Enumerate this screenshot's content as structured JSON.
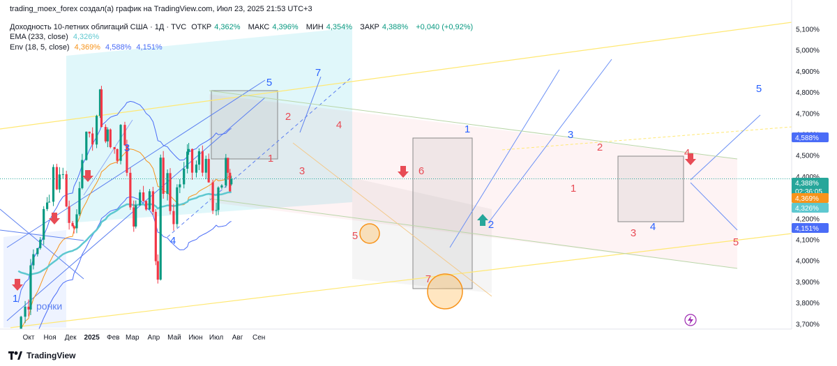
{
  "header": {
    "attribution": "trading_moex_forex создал(а) график на TradingView.com, Июл 23, 2025 21:53 UTC+3",
    "symbol": "Доходность 10-летних облигаций США · 1Д · TVC",
    "open_label": "ОТКР",
    "open_value": "4,362%",
    "high_label": "МАКС",
    "high_value": "4,396%",
    "low_label": "МИН",
    "low_value": "4,354%",
    "close_label": "ЗАКР",
    "close_value": "4,388%",
    "change": "+0,040 (+0,92%)",
    "ema_label": "EMA (233, close)",
    "ema_value": "4,326%",
    "env_label": "Env (18, 5, close)",
    "env_basis": "4,369%",
    "env_upper": "4,588%",
    "env_lower": "4,151%"
  },
  "footer": {
    "brand": "TradingView"
  },
  "colors": {
    "up": "#089981",
    "down": "#f23645",
    "ema": "#5ec8d0",
    "env_basis": "#f7931a",
    "env_band": "#4a6cf7",
    "last_price": "#26a69a",
    "wave_blue": "#2962ff",
    "wave_red": "#e84b55",
    "channel_yellow": "#ffe873"
  },
  "chart_data": {
    "type": "candlestick",
    "title": "Доходность 10-летних облигаций США",
    "interval": "1Д",
    "y_unit": "%",
    "ylim": [
      3.67,
      5.13
    ],
    "y_ticks": [
      "3,700%",
      "3,800%",
      "3,900%",
      "4,000%",
      "4,100%",
      "4,200%",
      "4,300%",
      "4,400%",
      "4,500%",
      "4,600%",
      "4,700%",
      "4,800%",
      "4,900%",
      "5,000%",
      "5,100%"
    ],
    "x_ticks": [
      "Окт",
      "Ноя",
      "Дек",
      "2025",
      "Фев",
      "Мар",
      "Апр",
      "Май",
      "Июн",
      "Июл",
      "Авг",
      "Сен"
    ],
    "price_labels": [
      {
        "key": "env_upper",
        "text": "4,588%"
      },
      {
        "key": "last",
        "text": "4,388%",
        "sub": "02:36:05"
      },
      {
        "key": "env_basis",
        "text": "4,369%"
      },
      {
        "key": "ema",
        "text": "4,326%"
      },
      {
        "key": "env_lower",
        "text": "4,151%"
      }
    ],
    "close_path": [
      [
        "2024-09-16",
        3.62
      ],
      [
        "2024-09-20",
        3.73
      ],
      [
        "2024-09-26",
        3.8
      ],
      [
        "2024-10-01",
        3.78
      ],
      [
        "2024-10-04",
        3.98
      ],
      [
        "2024-10-08",
        4.03
      ],
      [
        "2024-10-14",
        4.08
      ],
      [
        "2024-10-18",
        4.08
      ],
      [
        "2024-10-23",
        4.24
      ],
      [
        "2024-10-28",
        4.28
      ],
      [
        "2024-10-31",
        4.29
      ],
      [
        "2024-11-06",
        4.43
      ],
      [
        "2024-11-11",
        4.33
      ],
      [
        "2024-11-15",
        4.43
      ],
      [
        "2024-11-20",
        4.41
      ],
      [
        "2024-11-25",
        4.27
      ],
      [
        "2024-11-29",
        4.17
      ],
      [
        "2024-12-04",
        4.18
      ],
      [
        "2024-12-06",
        4.15
      ],
      [
        "2024-12-10",
        4.22
      ],
      [
        "2024-12-18",
        4.5
      ],
      [
        "2024-12-24",
        4.59
      ],
      [
        "2025-01-02",
        4.57
      ],
      [
        "2025-01-08",
        4.69
      ],
      [
        "2025-01-13",
        4.79
      ],
      [
        "2025-01-15",
        4.65
      ],
      [
        "2025-01-21",
        4.57
      ],
      [
        "2025-01-24",
        4.62
      ],
      [
        "2025-01-28",
        4.53
      ],
      [
        "2025-02-03",
        4.54
      ],
      [
        "2025-02-07",
        4.49
      ],
      [
        "2025-02-12",
        4.62
      ],
      [
        "2025-02-18",
        4.55
      ],
      [
        "2025-02-21",
        4.43
      ],
      [
        "2025-02-26",
        4.25
      ],
      [
        "2025-03-03",
        4.17
      ],
      [
        "2025-03-06",
        4.28
      ],
      [
        "2025-03-12",
        4.31
      ],
      [
        "2025-03-17",
        4.29
      ],
      [
        "2025-03-21",
        4.25
      ],
      [
        "2025-03-26",
        4.35
      ],
      [
        "2025-03-31",
        4.21
      ],
      [
        "2025-04-04",
        4.01
      ],
      [
        "2025-04-07",
        3.89
      ],
      [
        "2025-04-11",
        4.49
      ],
      [
        "2025-04-15",
        4.33
      ],
      [
        "2025-04-21",
        4.41
      ],
      [
        "2025-04-25",
        4.24
      ],
      [
        "2025-04-30",
        4.16
      ],
      [
        "2025-05-05",
        4.34
      ],
      [
        "2025-05-09",
        4.38
      ],
      [
        "2025-05-15",
        4.45
      ],
      [
        "2025-05-20",
        4.52
      ],
      [
        "2025-05-22",
        4.55
      ],
      [
        "2025-05-27",
        4.44
      ],
      [
        "2025-06-02",
        4.46
      ],
      [
        "2025-06-06",
        4.51
      ],
      [
        "2025-06-11",
        4.41
      ],
      [
        "2025-06-16",
        4.46
      ],
      [
        "2025-06-20",
        4.38
      ],
      [
        "2025-06-26",
        4.24
      ],
      [
        "2025-07-01",
        4.24
      ],
      [
        "2025-07-04",
        4.35
      ],
      [
        "2025-07-09",
        4.34
      ],
      [
        "2025-07-15",
        4.49
      ],
      [
        "2025-07-18",
        4.42
      ],
      [
        "2025-07-21",
        4.34
      ],
      [
        "2025-07-23",
        4.388
      ]
    ],
    "ohlc_last": {
      "open": 4.362,
      "high": 4.396,
      "low": 4.354,
      "close": 4.388
    },
    "ema_233": {
      "label": "EMA (233, close)",
      "last": 4.326
    },
    "envelope": {
      "label": "Env (18, 5, close)",
      "basis": 4.369,
      "upper": 4.588,
      "lower": 4.151
    },
    "wave_labels": [
      {
        "text": "1",
        "color": "blue"
      },
      {
        "text": "4",
        "color": "blue"
      },
      {
        "text": "3",
        "color": "blue"
      },
      {
        "text": "5",
        "color": "blue"
      },
      {
        "text": "7",
        "color": "blue"
      },
      {
        "text": "1",
        "color": "red"
      },
      {
        "text": "2",
        "color": "red"
      },
      {
        "text": "3",
        "color": "red"
      },
      {
        "text": "4",
        "color": "red"
      },
      {
        "text": "5",
        "color": "red"
      },
      {
        "text": "6",
        "color": "red"
      },
      {
        "text": "7",
        "color": "red"
      },
      {
        "text": "1",
        "color": "blue"
      },
      {
        "text": "2",
        "color": "blue"
      },
      {
        "text": "3",
        "color": "blue"
      },
      {
        "text": "2",
        "color": "red"
      },
      {
        "text": "1",
        "color": "red"
      },
      {
        "text": "3",
        "color": "red"
      },
      {
        "text": "4",
        "color": "blue"
      },
      {
        "text": "4",
        "color": "red"
      },
      {
        "text": "5",
        "color": "blue"
      },
      {
        "text": "5",
        "color": "red"
      }
    ],
    "annotations": [
      "ронки"
    ]
  }
}
